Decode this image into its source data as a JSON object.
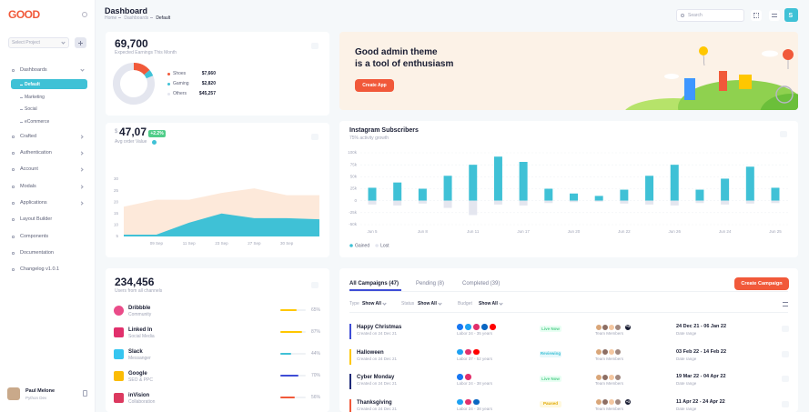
{
  "sidebar": {
    "logo": "GOOD",
    "project_select": "Select Project",
    "menu": [
      {
        "label": "Dashboards",
        "children": [
          "Default",
          "Marketing",
          "Social",
          "eCommerce"
        ]
      },
      {
        "label": "Crafted"
      },
      {
        "label": "Authentication"
      },
      {
        "label": "Account"
      },
      {
        "label": "Modals"
      },
      {
        "label": "Applications"
      },
      {
        "label": "Layout Builder"
      },
      {
        "label": "Components"
      },
      {
        "label": "Documentation"
      },
      {
        "label": "Changelog v1.0.1"
      }
    ],
    "user": {
      "name": "Paul Melone",
      "role": "Python Dev"
    }
  },
  "header": {
    "title": "Dashboard",
    "breadcrumb": [
      "Home",
      "Dashboards",
      "Default"
    ],
    "search_placeholder": "Search",
    "avatar": "S"
  },
  "earnings": {
    "total": "69,700",
    "subtitle": "Expected Earnings This Month",
    "items": [
      {
        "name": "Shoes",
        "value": 7660,
        "value_label": "$7,660",
        "color": "#f1593a"
      },
      {
        "name": "Gaming",
        "value": 2820,
        "value_label": "$2,820",
        "color": "#3fc1d6"
      },
      {
        "name": "Others",
        "value": 45257,
        "value_label": "$45,257",
        "color": "#e4e6ef"
      }
    ]
  },
  "banner": {
    "lines": [
      "Good admin theme",
      "is a tool of enthusiasm"
    ],
    "button": "Create App"
  },
  "orders": {
    "currency": "$",
    "value": "47,07",
    "change": "+2.2%",
    "subtitle": "Avg order Value",
    "chart": {
      "type": "area",
      "categories": [
        null,
        "09 Sep",
        "11 Sep",
        "23 Sep",
        "27 Sep",
        "30 Sep",
        null
      ],
      "series": [
        {
          "color": "#fde9da",
          "values": [
            18,
            21,
            21,
            24,
            26,
            23,
            23
          ]
        },
        {
          "color": "#3fc1d6",
          "values": [
            5.8,
            5.8,
            11,
            15,
            13,
            13,
            12.5
          ]
        }
      ],
      "ylim": [
        5,
        30
      ],
      "yticks": [
        5,
        10,
        15,
        20,
        25,
        30
      ]
    }
  },
  "instagram": {
    "title": "Instagram Subscribers",
    "subtitle": "75% activity growth",
    "chart": {
      "type": "bar",
      "categories": [
        "Jun 5",
        null,
        "Jun 8",
        null,
        "Jun 11",
        null,
        "Jun 17",
        null,
        "Jun 20",
        null,
        "Jun 22",
        null,
        "Jun 26",
        null,
        "Jun 24",
        null,
        "Jun 25"
      ],
      "series": [
        {
          "name": "Gained",
          "color": "#3fc1d6",
          "values": [
            27000,
            38000,
            25000,
            52000,
            75000,
            92000,
            81000,
            25000,
            15000,
            10000,
            23000,
            52000,
            75000,
            23000,
            46000,
            71000,
            27000
          ]
        },
        {
          "name": "Lost",
          "color": "#e4e6ef",
          "values": [
            -8000,
            -10000,
            -6000,
            -15000,
            -30000,
            -8000,
            -10000,
            -5000,
            -3000,
            -2000,
            -6000,
            -8000,
            -10000,
            -5000,
            -8000,
            -6000,
            -5000
          ]
        }
      ],
      "ylim": [
        -50000,
        100000
      ],
      "yticks": [
        {
          "value": -50000,
          "label": "-50k"
        },
        {
          "value": -25000,
          "label": "-25k"
        },
        0,
        {
          "value": 25000,
          "label": "25k"
        },
        {
          "value": 50000,
          "label": "50k"
        },
        {
          "value": 75000,
          "label": "75k"
        },
        {
          "value": 100000,
          "label": "100k"
        }
      ],
      "grid": true
    }
  },
  "users": {
    "total": "234,456",
    "subtitle": "Users from all channels",
    "channels": [
      {
        "name": "Dribbble",
        "desc": "Community",
        "value": 65,
        "value_label": "65%",
        "color": "#ffc700",
        "icon_color": "#ea4c89"
      },
      {
        "name": "Linked In",
        "desc": "Social Media",
        "value": 87,
        "value_label": "87%",
        "color": "#ffc700",
        "icon_color": "#e1306c"
      },
      {
        "name": "Slack",
        "desc": "Messanger",
        "value": 44,
        "value_label": "44%",
        "color": "#3fc1d6",
        "icon_color": "#36c5f0"
      },
      {
        "name": "Google",
        "desc": "SEO & PPC",
        "value": 70,
        "value_label": "70%",
        "color": "#3e4dd6",
        "icon_color": "#fbbc05"
      },
      {
        "name": "inVision",
        "desc": "Collaboration",
        "value": 56,
        "value_label": "56%",
        "color": "#f1593a",
        "icon_color": "#dc395f"
      }
    ]
  },
  "campaigns": {
    "tabs": [
      "All Campaigns (47)",
      "Pending (8)",
      "Completed (39)"
    ],
    "button": "Create Campaign",
    "filters": [
      {
        "label": "Type",
        "value": "Show All"
      },
      {
        "label": "Status",
        "value": "Show All"
      },
      {
        "label": "Budget",
        "value": "Show All"
      }
    ],
    "rows": [
      {
        "name": "Happy Christmas",
        "created": "Created on 24 Dec 21",
        "audience": "Labor 24 - 35 years",
        "status": "Live Now",
        "status_color": "#50cd89",
        "status_bg": "#e8fff3",
        "team": "Team Members",
        "extra": "+3",
        "dates": "24 Dec 21 - 06 Jan 22",
        "dates_label": "Date range",
        "color": "#3e4dd6"
      },
      {
        "name": "Halloween",
        "created": "Created on 24 Dec 21",
        "audience": "Labor 37 - 52 years",
        "status": "Reviewing",
        "status_color": "#3fc1d6",
        "status_bg": "#e6f8fb",
        "team": "Team Members",
        "dates": "03 Feb 22 - 14 Feb 22",
        "dates_label": "Date range",
        "color": "#ffc700"
      },
      {
        "name": "Cyber Monday",
        "created": "Created on 24 Dec 21",
        "audience": "Labor 24 - 38 years",
        "status": "Live Now",
        "status_color": "#50cd89",
        "status_bg": "#e8fff3",
        "team": "Team Members",
        "dates": "19 Mar 22 - 04 Apr 22",
        "dates_label": "Date range",
        "color": "#1e2a78"
      },
      {
        "name": "Thanksgiving",
        "created": "Created on 24 Dec 21",
        "audience": "Labor 24 - 38 years",
        "status": "Paused",
        "status_color": "#e0a800",
        "status_bg": "#fff8dd",
        "team": "Team Members",
        "extra": "+3",
        "dates": "11 Apr 22 - 24 Apr 22",
        "dates_label": "Date range",
        "color": "#f1593a"
      }
    ]
  }
}
